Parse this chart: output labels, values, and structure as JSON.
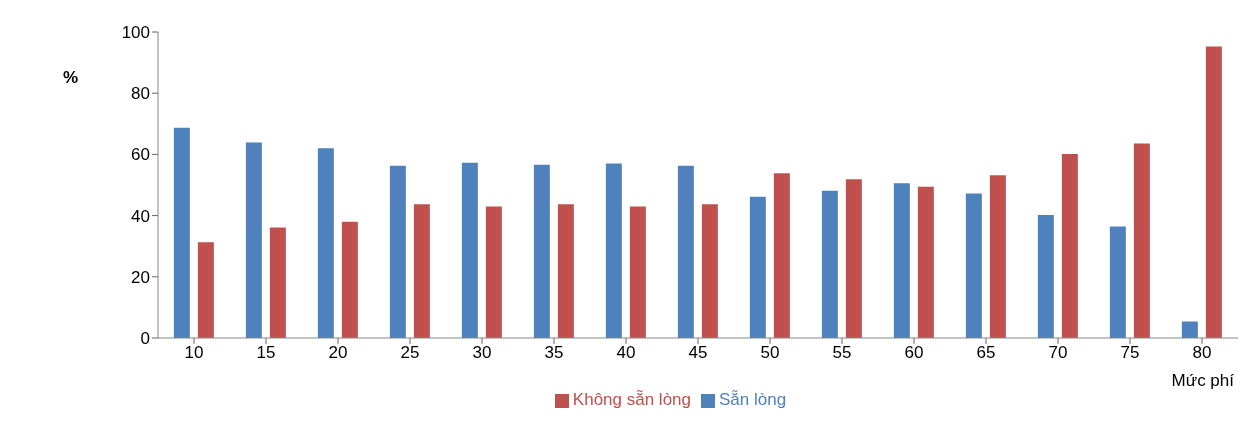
{
  "chart_data": {
    "type": "bar",
    "xlabel": "Mức phí",
    "ylabel": "%",
    "categories": [
      "10",
      "15",
      "20",
      "25",
      "30",
      "35",
      "40",
      "45",
      "50",
      "55",
      "60",
      "65",
      "70",
      "75",
      "80"
    ],
    "series": [
      {
        "name": "Sẵn lòng",
        "color": "#4f81bd",
        "values": [
          68.7,
          63.9,
          62.0,
          56.3,
          57.3,
          56.6,
          57.0,
          56.3,
          46.2,
          48.1,
          50.6,
          47.2,
          40.2,
          36.4,
          5.4
        ]
      },
      {
        "name": "Không sẵn lòng",
        "color": "#c0504d",
        "values": [
          31.3,
          36.1,
          38.0,
          43.7,
          43.0,
          43.7,
          43.0,
          43.7,
          53.8,
          51.9,
          49.4,
          53.2,
          60.1,
          63.6,
          95.3
        ]
      }
    ],
    "ylim": [
      0,
      100
    ],
    "yticks": [
      0,
      20,
      40,
      60,
      80,
      100
    ],
    "grid": false,
    "legend": "bottom"
  }
}
